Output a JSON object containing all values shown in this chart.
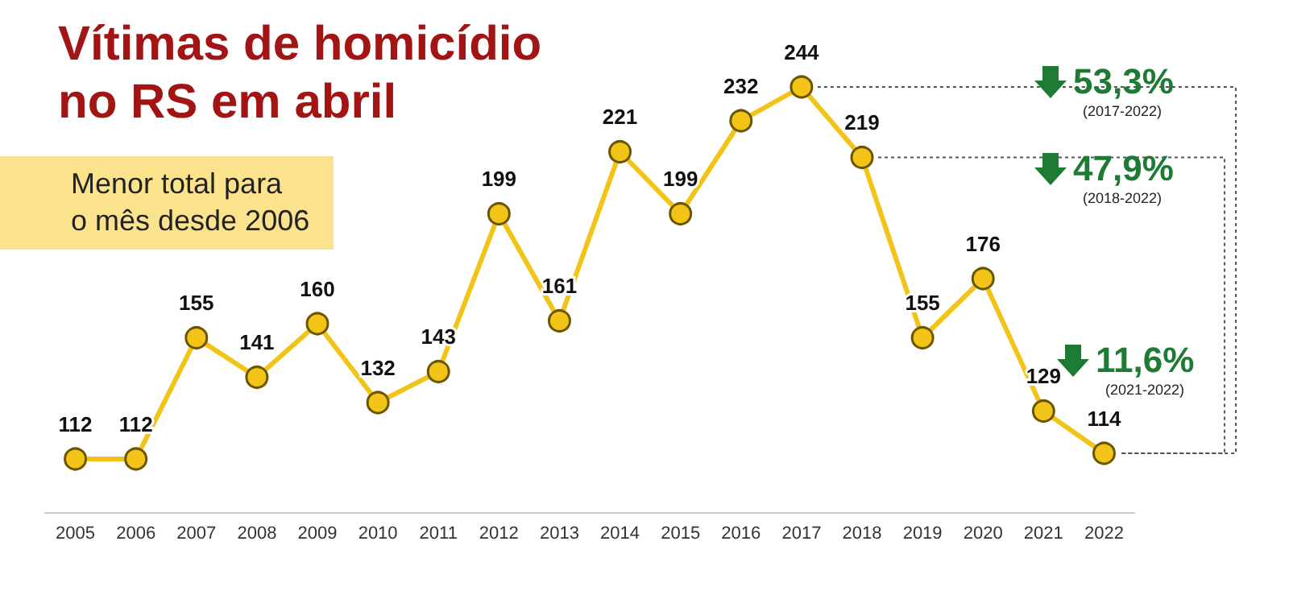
{
  "chart_data": {
    "type": "line",
    "title": "Vítimas de homicídio\nno RS em abril",
    "subtitle": "Menor total para\no mês desde 2006",
    "categories": [
      "2005",
      "2006",
      "2007",
      "2008",
      "2009",
      "2010",
      "2011",
      "2012",
      "2013",
      "2014",
      "2015",
      "2016",
      "2017",
      "2018",
      "2019",
      "2020",
      "2021",
      "2022"
    ],
    "values": [
      112,
      112,
      155,
      141,
      160,
      132,
      143,
      199,
      161,
      221,
      199,
      232,
      244,
      219,
      155,
      176,
      129,
      114
    ],
    "color": "#f2c418",
    "marker": "circle",
    "data_labels": true,
    "grid": false,
    "annotations": [
      "53,3%",
      "(2017-2022)",
      "47,9%",
      "(2018-2022)",
      "11,6%",
      "(2021-2022)"
    ]
  }
}
